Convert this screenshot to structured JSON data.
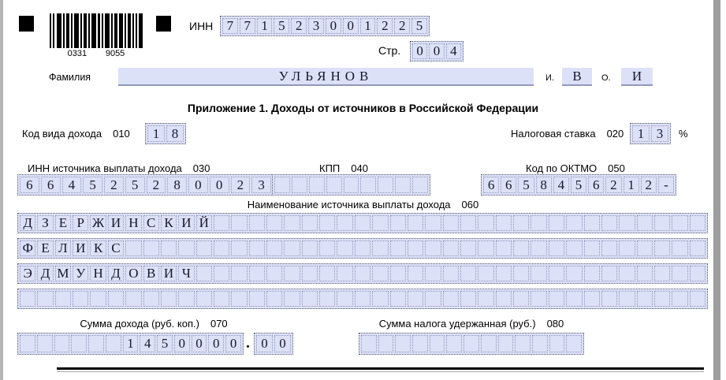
{
  "header": {
    "inn_label": "ИНН",
    "inn_value": "771523001225",
    "page_label": "Стр.",
    "page_value": "004",
    "barcode_left": "0331",
    "barcode_right": "9055"
  },
  "person": {
    "surname_label": "Фамилия",
    "surname_value": "УЛЬЯНОВ",
    "first_initial_label": "И.",
    "first_initial_value": "В",
    "middle_initial_label": "О.",
    "middle_initial_value": "И"
  },
  "section_title": "Приложение 1. Доходы от источников в Российской Федерации",
  "fields": {
    "income_type": {
      "label": "Код вида дохода",
      "code": "010",
      "value": "18"
    },
    "tax_rate": {
      "label": "Налоговая ставка",
      "code": "020",
      "value": "13",
      "suffix": "%"
    },
    "source_inn": {
      "label": "ИНН источника выплаты дохода",
      "code": "030",
      "value": "664525280023"
    },
    "kpp": {
      "label": "КПП",
      "code": "040",
      "value": ""
    },
    "oktmo": {
      "label": "Код по ОКТМО",
      "code": "050",
      "value": "6658456212-"
    },
    "source_name": {
      "label": "Наименование источника выплаты дохода",
      "code": "060",
      "rows": [
        "ДЗЕРЖИНСКИЙ",
        "ФЕЛИКС",
        "ЭДМУНДОВИЧ",
        ""
      ]
    },
    "income_amount": {
      "label": "Сумма дохода (руб. коп.)",
      "code": "070",
      "rubles": "1450000",
      "separator": ".",
      "kopecks": "00"
    },
    "tax_withheld": {
      "label": "Сумма налога удержанная (руб.)",
      "code": "080",
      "value": ""
    }
  }
}
